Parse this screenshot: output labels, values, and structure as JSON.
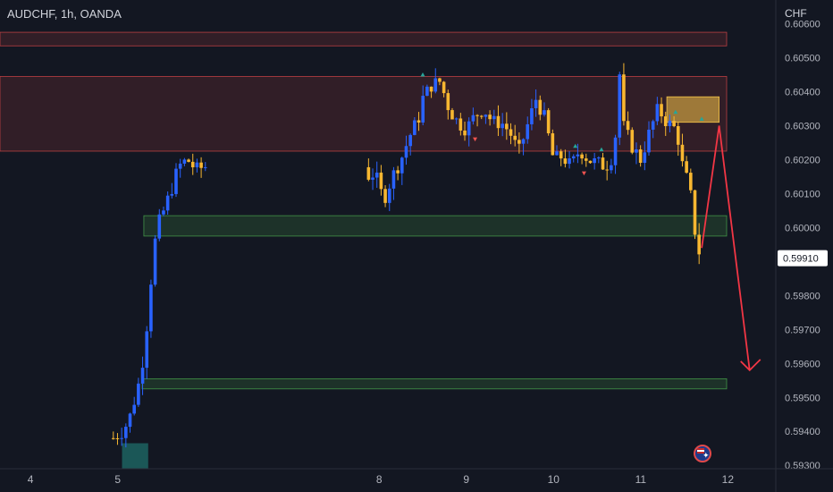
{
  "header": {
    "symbol_title": "AUDCHF, 1h, OANDA",
    "currency": "CHF"
  },
  "colors": {
    "background": "#131722",
    "bull": "#2962ff",
    "bear": "#f7b731",
    "text": "#d1d4dc",
    "axis_text": "#b2b5be",
    "resistance_zone": "#e0494a",
    "support_zone": "#4caf50",
    "supply_box": "#f7c548",
    "demand_box": "#26a69a",
    "projection_arrow": "#f23645",
    "signal_up": "#26a69a",
    "signal_down": "#ef5350"
  },
  "icons": {
    "flag": "australia-flag-icon"
  },
  "chart_data": {
    "type": "candlestick",
    "title": "AUDCHF, 1h, OANDA",
    "ylabel": "CHF",
    "ylim": [
      0.5929,
      0.6067
    ],
    "xlim": [
      3.65,
      12.55
    ],
    "x_ticks": [
      {
        "x": 4,
        "label": "4"
      },
      {
        "x": 5,
        "label": "5"
      },
      {
        "x": 8,
        "label": "8"
      },
      {
        "x": 9,
        "label": "9"
      },
      {
        "x": 10,
        "label": "10"
      },
      {
        "x": 11,
        "label": "11"
      },
      {
        "x": 12,
        "label": "12"
      }
    ],
    "y_ticks": [
      "0.60600",
      "0.60500",
      "0.60400",
      "0.60300",
      "0.60200",
      "0.60100",
      "0.60000",
      "0.59800",
      "0.59700",
      "0.59600",
      "0.59500",
      "0.59400",
      "0.59300"
    ],
    "last_price": "0.59910",
    "price_path": [
      [
        4.95,
        0.5938
      ],
      [
        5.05,
        0.594
      ],
      [
        5.1,
        0.5942
      ],
      [
        5.15,
        0.5945
      ],
      [
        5.2,
        0.595
      ],
      [
        5.25,
        0.5955
      ],
      [
        5.3,
        0.5963
      ],
      [
        5.35,
        0.5975
      ],
      [
        5.4,
        0.599
      ],
      [
        5.45,
        0.6
      ],
      [
        5.5,
        0.6003
      ],
      [
        5.6,
        0.601
      ],
      [
        5.7,
        0.6018
      ],
      [
        5.8,
        0.602
      ],
      [
        5.9,
        0.6017
      ],
      [
        6.0,
        0.6018
      ],
      [
        7.85,
        0.6015
      ],
      [
        7.95,
        0.6016
      ],
      [
        8.05,
        0.6008
      ],
      [
        8.15,
        0.6015
      ],
      [
        8.25,
        0.602
      ],
      [
        8.35,
        0.6027
      ],
      [
        8.45,
        0.6032
      ],
      [
        8.5,
        0.6038
      ],
      [
        8.6,
        0.6042
      ],
      [
        8.7,
        0.6043
      ],
      [
        8.8,
        0.6035
      ],
      [
        8.9,
        0.6031
      ],
      [
        9.0,
        0.6029
      ],
      [
        9.1,
        0.6033
      ],
      [
        9.2,
        0.6035
      ],
      [
        9.3,
        0.6031
      ],
      [
        9.4,
        0.6031
      ],
      [
        9.5,
        0.6028
      ],
      [
        9.6,
        0.6022
      ],
      [
        9.7,
        0.603
      ],
      [
        9.8,
        0.6038
      ],
      [
        9.9,
        0.6032
      ],
      [
        10.0,
        0.602
      ],
      [
        10.1,
        0.6021
      ],
      [
        10.2,
        0.6018
      ],
      [
        10.3,
        0.6023
      ],
      [
        10.4,
        0.602
      ],
      [
        10.5,
        0.6019
      ],
      [
        10.6,
        0.6018
      ],
      [
        10.7,
        0.6022
      ],
      [
        10.75,
        0.6048
      ],
      [
        10.8,
        0.603
      ],
      [
        10.9,
        0.6024
      ],
      [
        11.0,
        0.602
      ],
      [
        11.1,
        0.6028
      ],
      [
        11.2,
        0.6035
      ],
      [
        11.3,
        0.6031
      ],
      [
        11.4,
        0.6029
      ],
      [
        11.45,
        0.6024
      ],
      [
        11.5,
        0.6014
      ],
      [
        11.55,
        0.6015
      ],
      [
        11.6,
        0.6003
      ],
      [
        11.65,
        0.5994
      ],
      [
        11.7,
        0.5991
      ]
    ],
    "levels": {
      "resistance_zones": [
        [
          0.60535,
          0.60575
        ],
        [
          0.60225,
          0.60445
        ]
      ],
      "support_zones": [
        [
          0.59975,
          0.60035
        ],
        [
          0.59525,
          0.59555
        ]
      ],
      "supply_box": {
        "x": [
          11.3,
          11.9
        ],
        "y": [
          0.6031,
          0.60385
        ]
      },
      "demand_box": {
        "x": [
          5.05,
          5.35
        ],
        "y": [
          0.5929,
          0.59365
        ]
      }
    },
    "projection": [
      [
        11.7,
        0.5994
      ],
      [
        11.9,
        0.603
      ],
      [
        12.25,
        0.5958
      ]
    ]
  }
}
